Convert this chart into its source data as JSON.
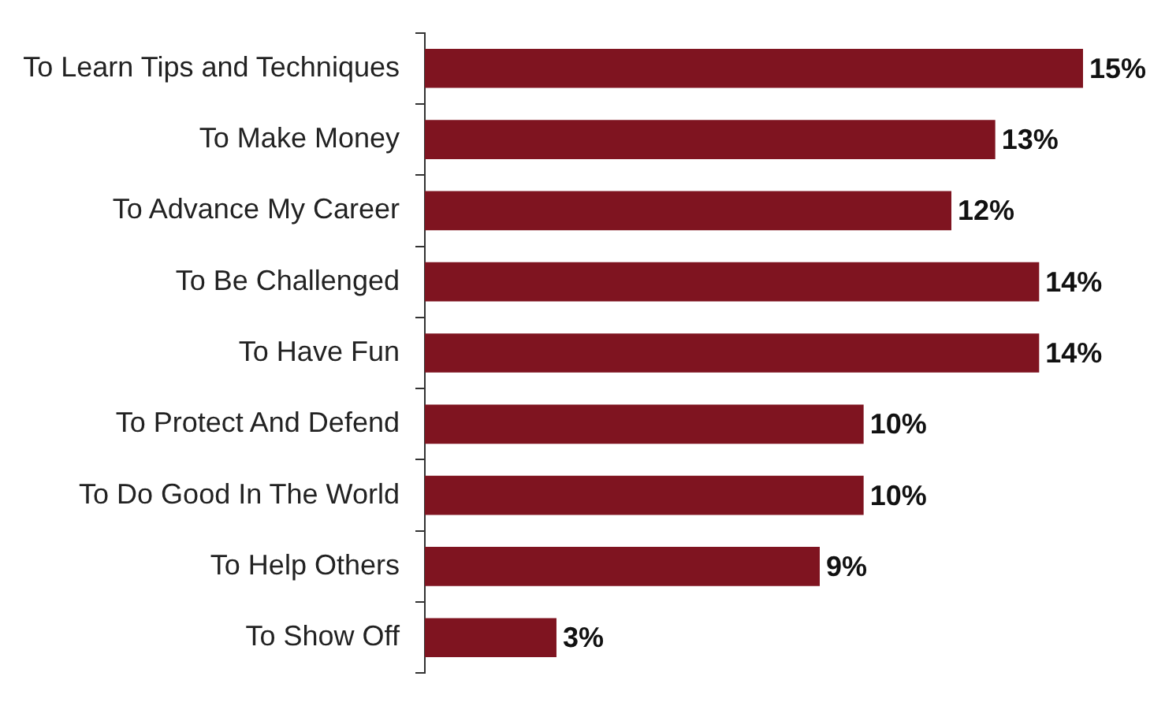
{
  "chart_data": {
    "type": "bar",
    "orientation": "horizontal",
    "categories": [
      "To Learn Tips and Techniques",
      "To Make Money",
      "To Advance My Career",
      "To Be Challenged",
      "To Have Fun",
      "To Protect And Defend",
      "To Do Good In The World",
      "To Help Others",
      "To Show Off"
    ],
    "values": [
      15,
      13,
      12,
      14,
      14,
      10,
      10,
      9,
      3
    ],
    "value_labels": [
      "15%",
      "13%",
      "12%",
      "14%",
      "14%",
      "10%",
      "10%",
      "9%",
      "3%"
    ],
    "color": "#7f1420",
    "xlim": [
      0,
      15
    ],
    "tick_labels": "y",
    "legend": false
  }
}
